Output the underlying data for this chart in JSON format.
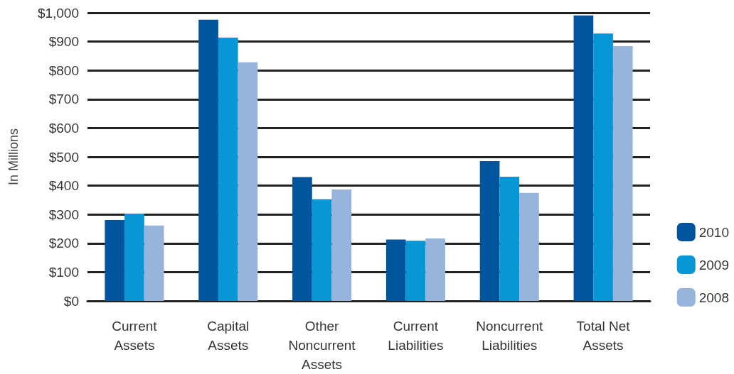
{
  "chart_data": {
    "type": "bar",
    "ylabel": "In Millions",
    "categories": [
      "Current\nAssets",
      "Capital\nAssets",
      "Other\nNoncurrent\nAssets",
      "Current\nLiabilities",
      "Noncurrent\nLiabilities",
      "Total Net\nAssets"
    ],
    "series": [
      {
        "name": "2010",
        "color": "#00559e",
        "values": [
          281,
          976,
          430,
          213,
          485,
          991
        ]
      },
      {
        "name": "2009",
        "color": "#0796d6",
        "values": [
          303,
          914,
          353,
          209,
          431,
          928
        ]
      },
      {
        "name": "2008",
        "color": "#97b4dc",
        "values": [
          262,
          828,
          387,
          217,
          375,
          884
        ]
      }
    ],
    "ylim": [
      0,
      1000
    ],
    "yticks": [
      {
        "value": 0,
        "label": "$0"
      },
      {
        "value": 100,
        "label": "$100"
      },
      {
        "value": 200,
        "label": "$200"
      },
      {
        "value": 300,
        "label": "$300"
      },
      {
        "value": 400,
        "label": "$400"
      },
      {
        "value": 500,
        "label": "$500"
      },
      {
        "value": 600,
        "label": "$600"
      },
      {
        "value": 700,
        "label": "$700"
      },
      {
        "value": 800,
        "label": "$800"
      },
      {
        "value": 900,
        "label": "$900"
      },
      {
        "value": 1000,
        "label": "$1,000"
      }
    ],
    "grid": "y",
    "legend": "bottom right"
  }
}
